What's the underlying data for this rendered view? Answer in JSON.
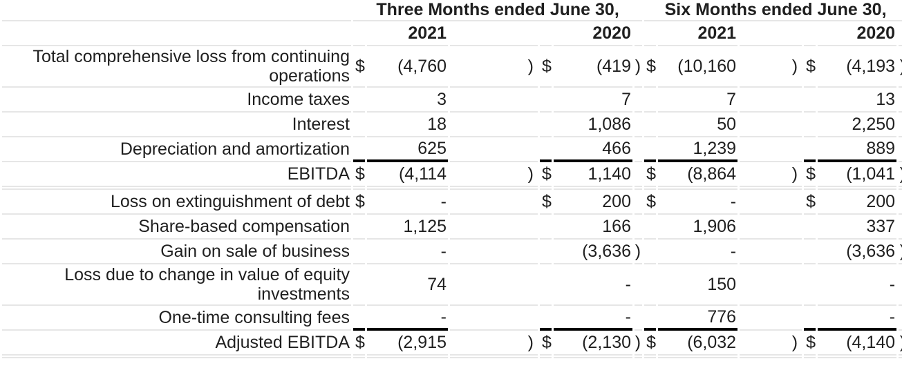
{
  "colors": {
    "text": "#1f1f1f",
    "separator": "#e6e6e6",
    "strong_rule": "#000000",
    "background": "#ffffff"
  },
  "header": {
    "groups": [
      {
        "title": "Three Months ended June 30,"
      },
      {
        "title": "Six Months ended June 30,"
      }
    ],
    "years": [
      "2021",
      "2020",
      "2021",
      "2020"
    ]
  },
  "rows": [
    {
      "label": "Total comprehensive loss from continuing operations",
      "tall": true,
      "cells": [
        [
          "$",
          "(4,760",
          ")"
        ],
        [
          "$",
          "(419",
          ")"
        ],
        [
          "$",
          "(10,160",
          ")"
        ],
        [
          "$",
          "(4,193",
          ")"
        ]
      ]
    },
    {
      "label": "Income taxes",
      "cells": [
        [
          "",
          "3",
          ""
        ],
        [
          "",
          "7",
          ""
        ],
        [
          "",
          "7",
          ""
        ],
        [
          "",
          "13",
          ""
        ]
      ]
    },
    {
      "label": "Interest",
      "cells": [
        [
          "",
          "18",
          ""
        ],
        [
          "",
          "1,086",
          ""
        ],
        [
          "",
          "50",
          ""
        ],
        [
          "",
          "2,250",
          ""
        ]
      ]
    },
    {
      "label": "Depreciation and amortization",
      "sum_underline": true,
      "cells": [
        [
          "",
          "625",
          ""
        ],
        [
          "",
          "466",
          ""
        ],
        [
          "",
          "1,239",
          ""
        ],
        [
          "",
          "889",
          ""
        ]
      ]
    },
    {
      "label": "EBITDA",
      "section_break_after": true,
      "cells": [
        [
          "$",
          "(4,114",
          ")"
        ],
        [
          "$",
          "1,140",
          ""
        ],
        [
          "$",
          "(8,864",
          ")"
        ],
        [
          "$",
          "(1,041",
          ")"
        ]
      ]
    },
    {
      "label": "Loss on extinguishment of debt",
      "cells": [
        [
          "$",
          "-",
          ""
        ],
        [
          "$",
          "200",
          ""
        ],
        [
          "$",
          "-",
          ""
        ],
        [
          "$",
          "200",
          ""
        ]
      ]
    },
    {
      "label": "Share-based compensation",
      "cells": [
        [
          "",
          "1,125",
          ""
        ],
        [
          "",
          "166",
          ""
        ],
        [
          "",
          "1,906",
          ""
        ],
        [
          "",
          "337",
          ""
        ]
      ]
    },
    {
      "label": "Gain on sale of business",
      "cells": [
        [
          "",
          "-",
          ""
        ],
        [
          "",
          "(3,636",
          ")"
        ],
        [
          "",
          "-",
          ""
        ],
        [
          "",
          "(3,636",
          ")"
        ]
      ]
    },
    {
      "label": "Loss due to change in value of equity investments",
      "tall": true,
      "cells": [
        [
          "",
          "74",
          ""
        ],
        [
          "",
          "-",
          ""
        ],
        [
          "",
          "150",
          ""
        ],
        [
          "",
          "-",
          ""
        ]
      ]
    },
    {
      "label": "One-time consulting fees",
      "sum_underline": true,
      "cells": [
        [
          "",
          "-",
          ""
        ],
        [
          "",
          "-",
          ""
        ],
        [
          "",
          "776",
          ""
        ],
        [
          "",
          "-",
          ""
        ]
      ]
    },
    {
      "label": "Adjusted EBITDA",
      "section_break_after": true,
      "cells": [
        [
          "$",
          "(2,915",
          ")"
        ],
        [
          "$",
          "(2,130",
          ")"
        ],
        [
          "$",
          "(6,032",
          ")"
        ],
        [
          "$",
          "(4,140",
          ")"
        ]
      ]
    }
  ]
}
